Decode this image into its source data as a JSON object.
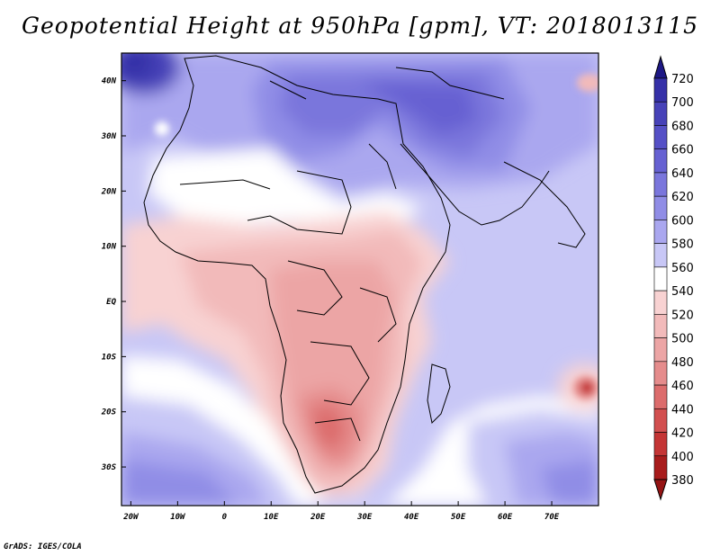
{
  "title": "Geopotential Height at 950hPa [gpm], VT: 2018013115",
  "credit": "GrADS: IGES/COLA",
  "colorbar": {
    "levels": [
      "720",
      "700",
      "680",
      "660",
      "640",
      "620",
      "600",
      "580",
      "560",
      "540",
      "520",
      "500",
      "480",
      "460",
      "440",
      "420",
      "400",
      "380"
    ],
    "colors": [
      "#2a249a",
      "#3631a8",
      "#4742b8",
      "#5550c6",
      "#6661d2",
      "#7a76dc",
      "#908de6",
      "#aaa7ef",
      "#c8c7f6",
      "#ffffff",
      "#f8d2d2",
      "#f2baba",
      "#eca5a5",
      "#e58c8c",
      "#dc6c6c",
      "#d24f4f",
      "#c43535",
      "#a81c1c"
    ],
    "top_color": "#1e1885",
    "bottom_color": "#951414"
  },
  "map": {
    "xlabels": [
      "20W",
      "10W",
      "0",
      "10E",
      "20E",
      "30E",
      "40E",
      "50E",
      "60E",
      "70E"
    ],
    "ylabels": [
      "40N",
      "30N",
      "20N",
      "10N",
      "EQ",
      "10S",
      "20S",
      "30S"
    ],
    "lon_range": [
      -22,
      80
    ],
    "lat_range": [
      -37,
      45
    ]
  }
}
